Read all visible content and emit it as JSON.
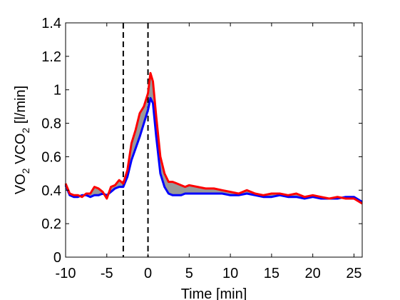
{
  "chart_data": {
    "type": "line",
    "title": "",
    "xlabel": "Time [min]",
    "ylabel_parts": [
      "VO",
      "2",
      "  VCO",
      "2",
      " [l/min]"
    ],
    "xlim": [
      -10,
      26
    ],
    "ylim": [
      0,
      1.4
    ],
    "xticks": [
      -10,
      -5,
      0,
      5,
      10,
      15,
      20,
      25
    ],
    "xtick_labels": [
      "-10",
      "-5",
      "0",
      "5",
      "10",
      "15",
      "20",
      "25"
    ],
    "yticks": [
      0,
      0.2,
      0.4,
      0.6,
      0.8,
      1.0,
      1.2,
      1.4
    ],
    "ytick_labels": [
      "0",
      "0.2",
      "0.4",
      "0.6",
      "0.8",
      "1",
      "1.2",
      "1.4"
    ],
    "grid": false,
    "vlines": [
      -3,
      0
    ],
    "series": [
      {
        "color": "#0000ff",
        "x": [
          -10,
          -9.5,
          -9,
          -8.5,
          -8,
          -7.5,
          -7,
          -6.5,
          -6,
          -5.5,
          -5,
          -4.5,
          -4,
          -3.5,
          -3,
          -2.5,
          -2,
          -1.5,
          -1,
          -0.5,
          0,
          0.3,
          0.6,
          1,
          1.5,
          2,
          2.5,
          3,
          3.5,
          4,
          4.5,
          5,
          6,
          7,
          8,
          9,
          10,
          11,
          12,
          13,
          14,
          15,
          16,
          17,
          18,
          19,
          20,
          21,
          22,
          23,
          24,
          25,
          26
        ],
        "y": [
          0.43,
          0.37,
          0.36,
          0.36,
          0.37,
          0.37,
          0.36,
          0.37,
          0.37,
          0.38,
          0.37,
          0.39,
          0.41,
          0.42,
          0.42,
          0.48,
          0.58,
          0.65,
          0.72,
          0.8,
          0.88,
          0.95,
          0.92,
          0.72,
          0.5,
          0.42,
          0.38,
          0.37,
          0.37,
          0.37,
          0.38,
          0.38,
          0.38,
          0.38,
          0.38,
          0.38,
          0.37,
          0.37,
          0.38,
          0.37,
          0.36,
          0.36,
          0.37,
          0.36,
          0.36,
          0.35,
          0.36,
          0.35,
          0.35,
          0.35,
          0.36,
          0.36,
          0.33
        ]
      },
      {
        "color": "#ff0000",
        "x": [
          -10,
          -9.5,
          -9,
          -8.5,
          -8,
          -7.5,
          -7,
          -6.5,
          -6,
          -5.5,
          -5,
          -4.5,
          -4,
          -3.5,
          -3,
          -2.5,
          -2,
          -1.5,
          -1,
          -0.5,
          0,
          0.3,
          0.6,
          1,
          1.5,
          2,
          2.5,
          3,
          3.5,
          4,
          4.5,
          5,
          6,
          7,
          8,
          9,
          10,
          11,
          12,
          13,
          14,
          15,
          16,
          17,
          18,
          19,
          20,
          21,
          22,
          23,
          24,
          25,
          26
        ],
        "y": [
          0.44,
          0.38,
          0.37,
          0.37,
          0.36,
          0.38,
          0.38,
          0.42,
          0.41,
          0.39,
          0.35,
          0.42,
          0.43,
          0.46,
          0.44,
          0.52,
          0.68,
          0.76,
          0.86,
          0.9,
          0.98,
          1.1,
          1.05,
          0.84,
          0.6,
          0.5,
          0.45,
          0.45,
          0.44,
          0.43,
          0.42,
          0.43,
          0.42,
          0.41,
          0.41,
          0.4,
          0.39,
          0.38,
          0.4,
          0.38,
          0.37,
          0.38,
          0.38,
          0.37,
          0.38,
          0.36,
          0.37,
          0.36,
          0.35,
          0.36,
          0.35,
          0.35,
          0.32
        ]
      }
    ],
    "fill_between": {
      "color": "#999999"
    }
  }
}
